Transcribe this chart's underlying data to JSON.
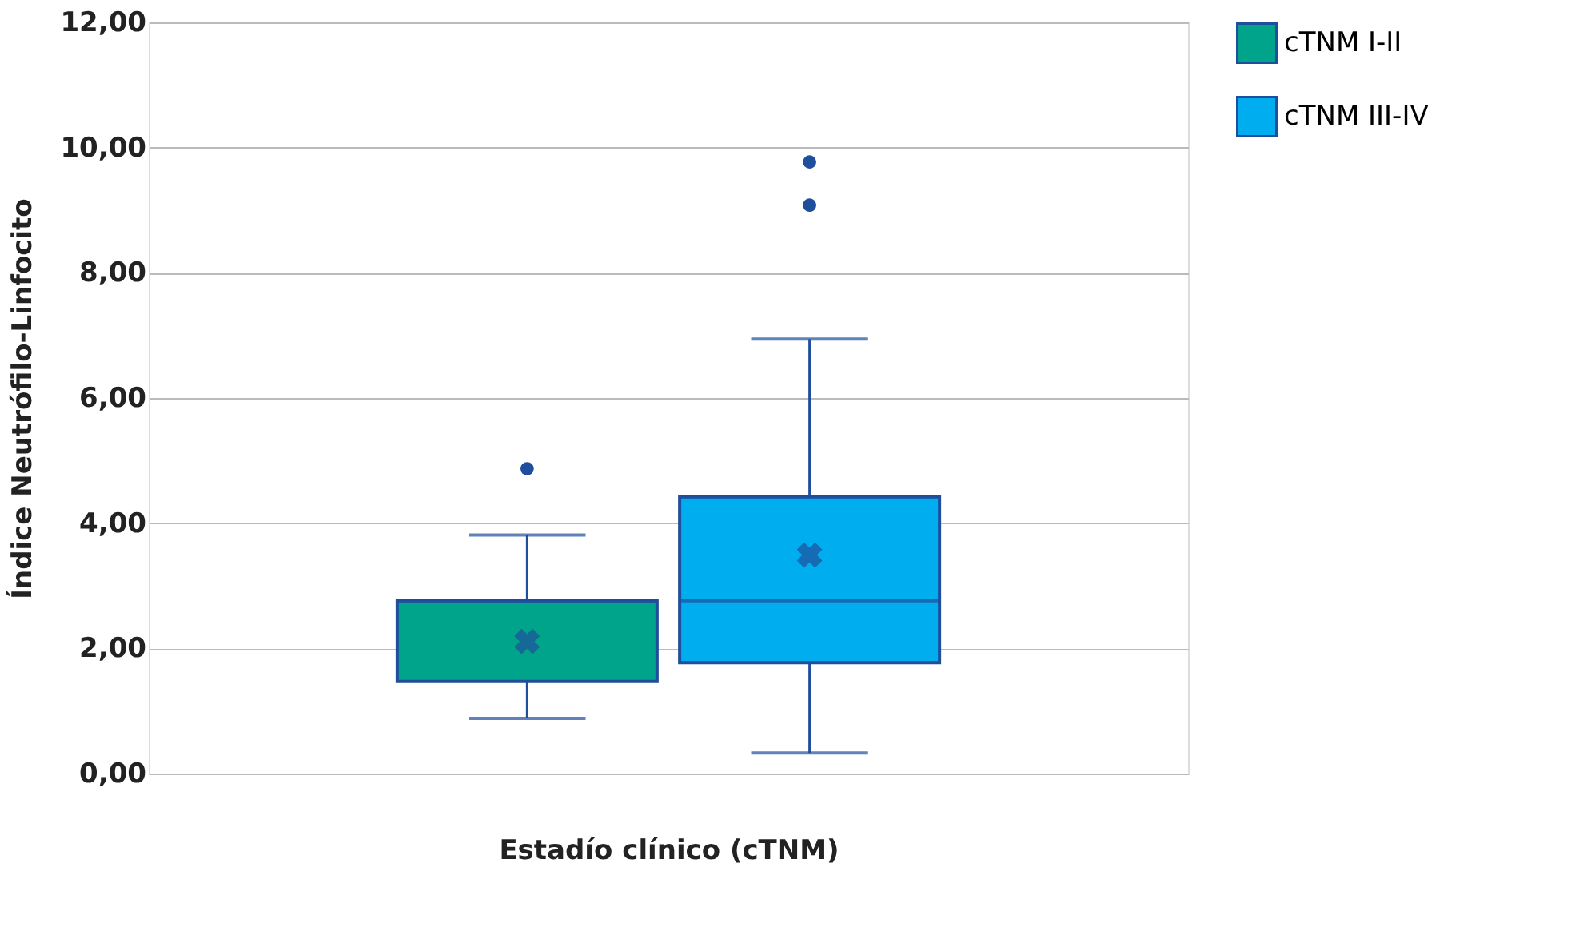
{
  "chart_data": {
    "type": "box",
    "xlabel": "Estadío clínico (cTNM)",
    "ylabel": "Índice Neutrófilo-Linfocito",
    "categories": [
      null
    ],
    "series": [
      {
        "name": "cTNM I-II",
        "color": "#00a48a",
        "boxes": [
          {
            "low": 0.88,
            "q1": 1.47,
            "median": 2.76,
            "q3": 2.76,
            "high": 3.81,
            "mean": 2.11,
            "outliers": [
              4.87
            ]
          }
        ]
      },
      {
        "name": "cTNM III-IV",
        "color": "#00adef",
        "boxes": [
          {
            "low": 0.33,
            "q1": 1.77,
            "median": 2.76,
            "q3": 4.42,
            "high": 6.94,
            "mean": 3.49,
            "outliers": [
              9.08,
              9.77
            ]
          }
        ]
      }
    ],
    "ylim": [
      0,
      12
    ],
    "yticks": [
      {
        "value": 0,
        "label": "0,00"
      },
      {
        "value": 2,
        "label": "2,00"
      },
      {
        "value": 4,
        "label": "4,00"
      },
      {
        "value": 6,
        "label": "6,00"
      },
      {
        "value": 8,
        "label": "8,00"
      },
      {
        "value": 10,
        "label": "10,00"
      },
      {
        "value": 12,
        "label": "12,00"
      }
    ],
    "grid": "y",
    "legend": "right"
  }
}
